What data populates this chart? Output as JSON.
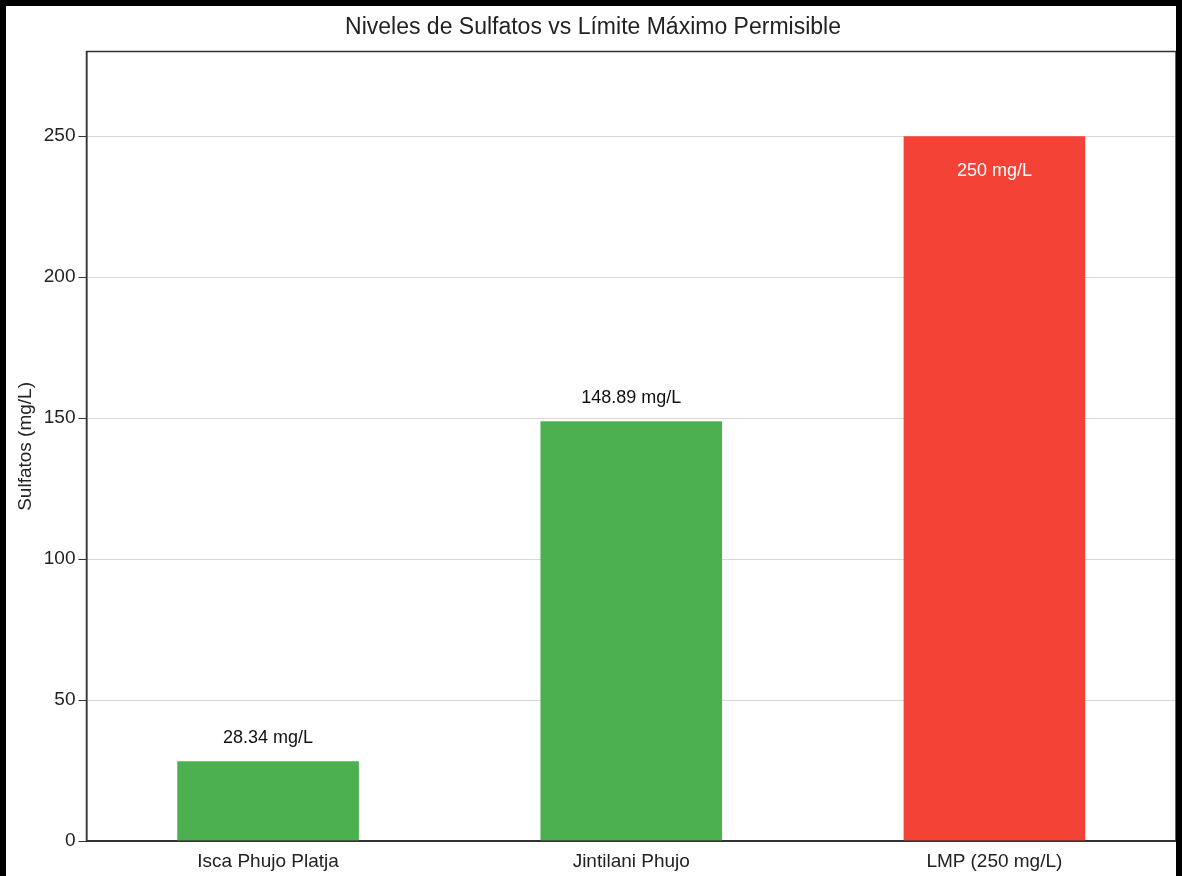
{
  "chart_data": {
    "type": "bar",
    "title": "Niveles de Sulfatos vs Límite Máximo Permisible",
    "ylabel": "Sulfatos (mg/L)",
    "categories": [
      "Isca Phujo Platja",
      "Jintilani Phujo",
      "LMP (250 mg/L)"
    ],
    "values": [
      28.34,
      148.89,
      250
    ],
    "colors": [
      "#4caf50",
      "#4caf50",
      "#f44336"
    ],
    "value_labels": [
      "28.34 mg/L",
      "148.89 mg/L",
      "250 mg/L"
    ],
    "ylim": [
      0,
      280
    ],
    "yticks": [
      0,
      50,
      100,
      150,
      200,
      250
    ],
    "grid": "y",
    "legend": false
  }
}
